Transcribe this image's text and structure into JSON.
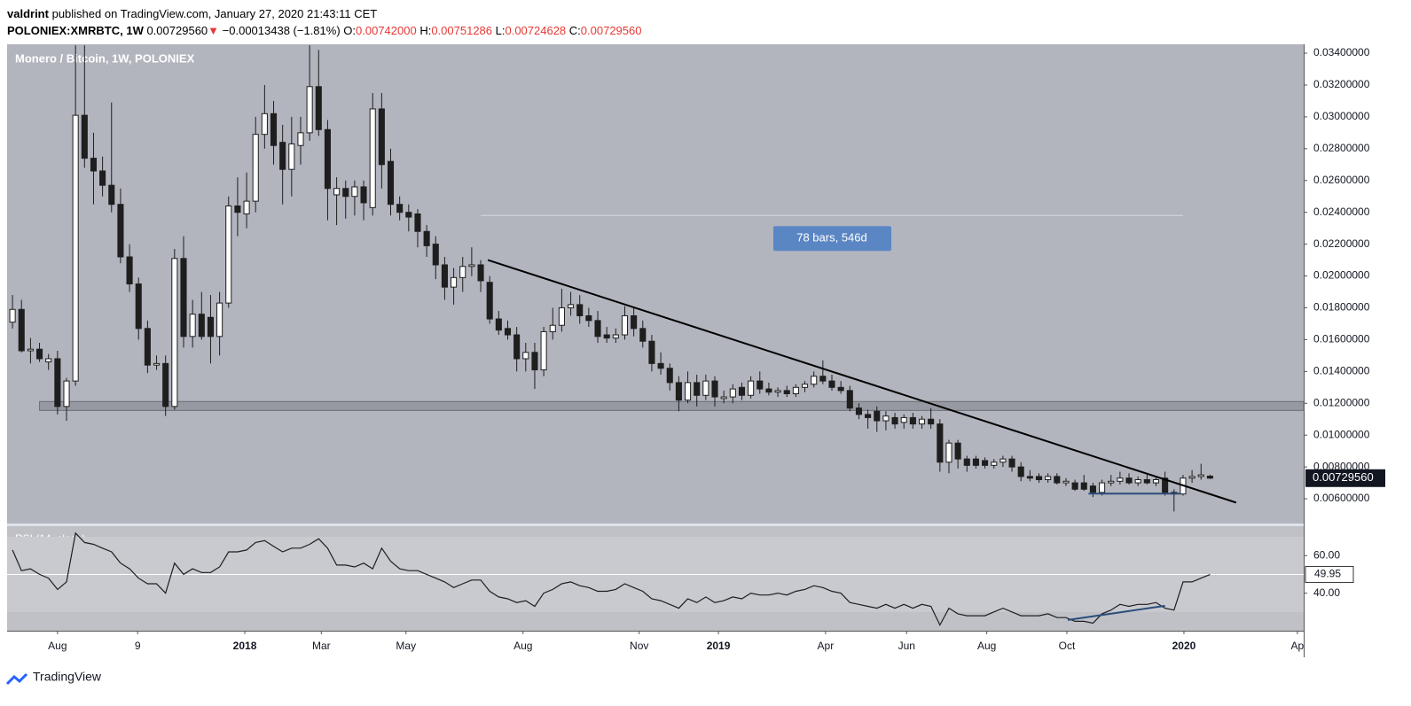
{
  "header": {
    "author": "valdrint",
    "published": "published on TradingView.com, January 27, 2020 21:43:11 CET",
    "symbol": "POLONIEX:XMRBTC, 1W",
    "price": "0.00729560",
    "arrow": "▼",
    "change": "−0.00013438 (−1.81%)",
    "o_key": "O:",
    "o": "0.00742000",
    "h_key": "H:",
    "h": "0.00751286",
    "l_key": "L:",
    "l": "0.00724628",
    "c_key": "C:",
    "c": "0.00729560"
  },
  "footer": {
    "brand": "TradingView"
  },
  "chart_data": {
    "type": "candlestick",
    "title": "Monero / Bitcoin, 1W, POLONIEX",
    "xlim": [
      -0.6,
      143.4
    ],
    "xticks": [
      {
        "value": 5.0,
        "label": "Aug"
      },
      {
        "value": 13.9,
        "label": "9"
      },
      {
        "value": 25.8,
        "label": "2018"
      },
      {
        "value": 34.3,
        "label": "Mar"
      },
      {
        "value": 43.7,
        "label": "May"
      },
      {
        "value": 56.7,
        "label": "Aug"
      },
      {
        "value": 69.6,
        "label": "Nov"
      },
      {
        "value": 78.4,
        "label": "2019"
      },
      {
        "value": 90.3,
        "label": "Apr"
      },
      {
        "value": 99.3,
        "label": "Jun"
      },
      {
        "value": 108.2,
        "label": "Aug"
      },
      {
        "value": 117.1,
        "label": "Oct"
      },
      {
        "value": 130.1,
        "label": "2020"
      },
      {
        "value": 142.7,
        "label": "Ap"
      }
    ],
    "ylim": [
      0.0045,
      0.03456
    ],
    "yticks": [
      {
        "value": 0.006,
        "label": "0.00600000"
      },
      {
        "value": 0.008,
        "label": "0.00800000"
      },
      {
        "value": 0.01,
        "label": "0.01000000"
      },
      {
        "value": 0.012,
        "label": "0.01200000"
      },
      {
        "value": 0.014,
        "label": "0.01400000"
      },
      {
        "value": 0.016,
        "label": "0.01600000"
      },
      {
        "value": 0.018,
        "label": "0.01800000"
      },
      {
        "value": 0.02,
        "label": "0.02000000"
      },
      {
        "value": 0.022,
        "label": "0.02200000"
      },
      {
        "value": 0.024,
        "label": "0.02400000"
      },
      {
        "value": 0.026,
        "label": "0.02600000"
      },
      {
        "value": 0.028,
        "label": "0.02800000"
      },
      {
        "value": 0.03,
        "label": "0.03000000"
      },
      {
        "value": 0.032,
        "label": "0.03200000"
      },
      {
        "value": 0.034,
        "label": "0.03400000"
      }
    ],
    "last_price": {
      "value": 0.0072956,
      "label": "0.00729560"
    },
    "up_color": "#ffffff",
    "down_color": "#1e1e1e",
    "candles": [
      [
        0.0171,
        0.0188,
        0.0167,
        0.0179
      ],
      [
        0.0179,
        0.0185,
        0.0152,
        0.0153
      ],
      [
        0.0153,
        0.0161,
        0.0145,
        0.0154
      ],
      [
        0.0154,
        0.0158,
        0.0146,
        0.0148
      ],
      [
        0.0146,
        0.0151,
        0.0141,
        0.0148
      ],
      [
        0.0148,
        0.0153,
        0.0113,
        0.0118
      ],
      [
        0.0118,
        0.0136,
        0.0109,
        0.0134
      ],
      [
        0.0134,
        0.0345,
        0.0131,
        0.0301
      ],
      [
        0.0301,
        0.0345,
        0.0268,
        0.0274
      ],
      [
        0.0274,
        0.029,
        0.0245,
        0.0266
      ],
      [
        0.0266,
        0.0275,
        0.025,
        0.0257
      ],
      [
        0.0257,
        0.0309,
        0.024,
        0.0245
      ],
      [
        0.0245,
        0.0255,
        0.0208,
        0.0212
      ],
      [
        0.0212,
        0.022,
        0.019,
        0.0195
      ],
      [
        0.0195,
        0.0199,
        0.016,
        0.0167
      ],
      [
        0.0167,
        0.0172,
        0.0139,
        0.0144
      ],
      [
        0.0144,
        0.015,
        0.0141,
        0.0145
      ],
      [
        0.0145,
        0.015,
        0.0112,
        0.0118
      ],
      [
        0.0118,
        0.0217,
        0.0116,
        0.0211
      ],
      [
        0.0211,
        0.0225,
        0.0155,
        0.0162
      ],
      [
        0.0162,
        0.0185,
        0.0155,
        0.0176
      ],
      [
        0.0176,
        0.019,
        0.016,
        0.0162
      ],
      [
        0.0174,
        0.0188,
        0.0145,
        0.0162
      ],
      [
        0.0162,
        0.019,
        0.015,
        0.0183
      ],
      [
        0.0183,
        0.025,
        0.018,
        0.0244
      ],
      [
        0.0244,
        0.0262,
        0.0225,
        0.024
      ],
      [
        0.0239,
        0.0265,
        0.023,
        0.0247
      ],
      [
        0.0247,
        0.03,
        0.024,
        0.0289
      ],
      [
        0.0289,
        0.032,
        0.028,
        0.0302
      ],
      [
        0.0302,
        0.031,
        0.027,
        0.0282
      ],
      [
        0.0284,
        0.0295,
        0.0245,
        0.0267
      ],
      [
        0.0267,
        0.03,
        0.025,
        0.0283
      ],
      [
        0.0282,
        0.03,
        0.027,
        0.029
      ],
      [
        0.029,
        0.0345,
        0.0285,
        0.0319
      ],
      [
        0.0319,
        0.0342,
        0.0288,
        0.0292
      ],
      [
        0.0292,
        0.0298,
        0.0235,
        0.0255
      ],
      [
        0.0251,
        0.0262,
        0.0232,
        0.0255
      ],
      [
        0.0255,
        0.026,
        0.0236,
        0.025
      ],
      [
        0.025,
        0.026,
        0.0238,
        0.0256
      ],
      [
        0.0256,
        0.026,
        0.0235,
        0.0246
      ],
      [
        0.0243,
        0.0315,
        0.0238,
        0.0305
      ],
      [
        0.0305,
        0.0315,
        0.0255,
        0.027
      ],
      [
        0.0272,
        0.028,
        0.0238,
        0.0245
      ],
      [
        0.0245,
        0.025,
        0.0235,
        0.024
      ],
      [
        0.024,
        0.0245,
        0.0228,
        0.0237
      ],
      [
        0.0239,
        0.0242,
        0.0218,
        0.0228
      ],
      [
        0.0228,
        0.0232,
        0.0212,
        0.0219
      ],
      [
        0.022,
        0.0225,
        0.0198,
        0.0207
      ],
      [
        0.0207,
        0.0212,
        0.0185,
        0.0193
      ],
      [
        0.0193,
        0.0205,
        0.0182,
        0.0199
      ],
      [
        0.0199,
        0.0212,
        0.019,
        0.0206
      ],
      [
        0.0206,
        0.0218,
        0.02,
        0.0207
      ],
      [
        0.0207,
        0.021,
        0.019,
        0.0197
      ],
      [
        0.0196,
        0.02,
        0.017,
        0.0173
      ],
      [
        0.0173,
        0.0178,
        0.0163,
        0.0166
      ],
      [
        0.0167,
        0.0172,
        0.016,
        0.0163
      ],
      [
        0.0163,
        0.0168,
        0.014,
        0.0148
      ],
      [
        0.0148,
        0.0158,
        0.014,
        0.0152
      ],
      [
        0.0152,
        0.0158,
        0.0129,
        0.0141
      ],
      [
        0.0141,
        0.0168,
        0.0137,
        0.0165
      ],
      [
        0.0165,
        0.018,
        0.016,
        0.0169
      ],
      [
        0.0169,
        0.0192,
        0.0165,
        0.018
      ],
      [
        0.018,
        0.019,
        0.0175,
        0.0182
      ],
      [
        0.0182,
        0.0188,
        0.017,
        0.0175
      ],
      [
        0.0175,
        0.018,
        0.0168,
        0.0172
      ],
      [
        0.0172,
        0.0178,
        0.0158,
        0.0162
      ],
      [
        0.0163,
        0.0168,
        0.0158,
        0.0161
      ],
      [
        0.0161,
        0.0167,
        0.0158,
        0.0163
      ],
      [
        0.0163,
        0.0181,
        0.016,
        0.0175
      ],
      [
        0.0175,
        0.018,
        0.0162,
        0.0167
      ],
      [
        0.0167,
        0.0172,
        0.0155,
        0.0159
      ],
      [
        0.0159,
        0.0163,
        0.014,
        0.0145
      ],
      [
        0.0145,
        0.0152,
        0.0138,
        0.0142
      ],
      [
        0.0142,
        0.0145,
        0.0128,
        0.0133
      ],
      [
        0.0133,
        0.0137,
        0.0115,
        0.0122
      ],
      [
        0.0122,
        0.014,
        0.012,
        0.0133
      ],
      [
        0.0133,
        0.0138,
        0.0118,
        0.0125
      ],
      [
        0.0125,
        0.0138,
        0.0122,
        0.0134
      ],
      [
        0.0134,
        0.0137,
        0.0118,
        0.0124
      ],
      [
        0.0123,
        0.0128,
        0.012,
        0.0124
      ],
      [
        0.0124,
        0.0132,
        0.012,
        0.0129
      ],
      [
        0.013,
        0.0133,
        0.0122,
        0.0125
      ],
      [
        0.0125,
        0.0137,
        0.0123,
        0.0134
      ],
      [
        0.0134,
        0.014,
        0.0126,
        0.0129
      ],
      [
        0.0129,
        0.0133,
        0.0125,
        0.0127
      ],
      [
        0.0127,
        0.013,
        0.0124,
        0.0128
      ],
      [
        0.0128,
        0.0131,
        0.0124,
        0.0126
      ],
      [
        0.0126,
        0.0132,
        0.0124,
        0.013
      ],
      [
        0.013,
        0.0134,
        0.0127,
        0.0132
      ],
      [
        0.0132,
        0.014,
        0.013,
        0.0137
      ],
      [
        0.0137,
        0.0147,
        0.0132,
        0.0134
      ],
      [
        0.0134,
        0.0138,
        0.0128,
        0.013
      ],
      [
        0.013,
        0.0134,
        0.0126,
        0.0128
      ],
      [
        0.0128,
        0.0131,
        0.0115,
        0.0117
      ],
      [
        0.0117,
        0.012,
        0.011,
        0.0113
      ],
      [
        0.0113,
        0.0116,
        0.0104,
        0.0111
      ],
      [
        0.0115,
        0.0118,
        0.0102,
        0.0109
      ],
      [
        0.0109,
        0.0115,
        0.0103,
        0.0112
      ],
      [
        0.0111,
        0.0114,
        0.0104,
        0.0107
      ],
      [
        0.0108,
        0.0113,
        0.0104,
        0.0111
      ],
      [
        0.0111,
        0.0114,
        0.0104,
        0.0107
      ],
      [
        0.0107,
        0.0112,
        0.0104,
        0.011
      ],
      [
        0.011,
        0.0117,
        0.0104,
        0.0107
      ],
      [
        0.0107,
        0.011,
        0.0077,
        0.0083
      ],
      [
        0.0083,
        0.0097,
        0.0076,
        0.0095
      ],
      [
        0.0095,
        0.0097,
        0.0079,
        0.0085
      ],
      [
        0.0085,
        0.0087,
        0.0077,
        0.0081
      ],
      [
        0.0085,
        0.0087,
        0.0079,
        0.0081
      ],
      [
        0.0084,
        0.0086,
        0.0079,
        0.0081
      ],
      [
        0.0081,
        0.0085,
        0.0079,
        0.0083
      ],
      [
        0.0083,
        0.0087,
        0.008,
        0.0085
      ],
      [
        0.0085,
        0.0087,
        0.0077,
        0.008
      ],
      [
        0.008,
        0.0083,
        0.0071,
        0.0074
      ],
      [
        0.0074,
        0.0078,
        0.0071,
        0.0073
      ],
      [
        0.0074,
        0.0076,
        0.007,
        0.0072
      ],
      [
        0.0072,
        0.0076,
        0.007,
        0.0074
      ],
      [
        0.0074,
        0.0076,
        0.0069,
        0.007
      ],
      [
        0.007,
        0.0073,
        0.0068,
        0.0071
      ],
      [
        0.007,
        0.0072,
        0.0065,
        0.0066
      ],
      [
        0.007,
        0.0075,
        0.0065,
        0.0066
      ],
      [
        0.0068,
        0.007,
        0.0061,
        0.0064
      ],
      [
        0.0064,
        0.0072,
        0.0062,
        0.007
      ],
      [
        0.007,
        0.0075,
        0.0068,
        0.0071
      ],
      [
        0.0071,
        0.0077,
        0.0069,
        0.0073
      ],
      [
        0.0073,
        0.0076,
        0.0069,
        0.007
      ],
      [
        0.007,
        0.0074,
        0.0068,
        0.0072
      ],
      [
        0.0072,
        0.0075,
        0.0069,
        0.007
      ],
      [
        0.007,
        0.0074,
        0.0068,
        0.0072
      ],
      [
        0.0073,
        0.0077,
        0.0062,
        0.0064
      ],
      [
        0.0064,
        0.0066,
        0.0052,
        0.0063
      ],
      [
        0.0063,
        0.0075,
        0.0062,
        0.0073
      ],
      [
        0.0073,
        0.0078,
        0.007,
        0.0074
      ],
      [
        0.0074,
        0.0082,
        0.0072,
        0.0075
      ],
      [
        0.00742,
        0.00751286,
        0.00724628,
        0.0072956
      ]
    ],
    "zone": {
      "y": [
        0.01155,
        0.01211
      ],
      "x": [
        3.0,
        143.4
      ],
      "color": "#8a8d94"
    },
    "trendline": {
      "x": [
        52.8,
        135.9
      ],
      "y": [
        0.021,
        0.00576
      ],
      "color": "#000000"
    },
    "support_line": {
      "x": [
        119.5,
        129.7
      ],
      "y": [
        0.00632,
        0.00632
      ],
      "color": "#2a4d7a"
    },
    "measure": {
      "label": "78 bars, 546d",
      "x": [
        52,
        130
      ],
      "y": 0.0238,
      "color": "#5b86c4"
    },
    "rsi": {
      "title": "RSI (14, close)",
      "ylim": [
        20,
        75.7
      ],
      "yticks": [
        {
          "value": 60,
          "label": "60.00"
        },
        {
          "value": 40,
          "label": "40.00"
        }
      ],
      "band": [
        30,
        70
      ],
      "mid": 50,
      "color": "#1e1e1e",
      "divergence": {
        "x": [
          117.2,
          128
        ],
        "y": [
          25.7,
          33.3
        ],
        "color": "#2a4d7a"
      },
      "values": [
        63,
        52,
        53,
        50,
        48,
        42,
        46,
        72,
        67,
        66,
        64,
        62,
        56,
        53,
        48,
        45,
        45,
        40,
        56,
        50,
        53,
        51,
        51,
        54,
        62,
        62,
        63,
        67,
        68,
        65,
        62,
        64,
        64,
        66,
        69,
        64,
        55,
        55,
        54,
        56,
        53,
        64,
        57,
        53,
        52,
        52,
        50,
        48,
        46,
        43,
        45,
        47,
        47,
        41,
        38,
        37,
        35,
        36,
        33,
        40,
        42,
        45,
        46,
        44,
        43,
        41,
        41,
        42,
        45,
        43,
        41,
        37,
        36,
        34,
        32,
        37,
        35,
        38,
        35,
        36,
        38,
        37,
        40,
        39,
        39,
        40,
        39,
        41,
        42,
        44,
        43,
        41,
        40,
        35,
        34,
        33,
        32,
        34,
        32,
        34,
        32,
        34,
        33,
        23,
        32,
        29,
        28,
        28,
        28,
        30,
        32,
        30,
        28,
        28,
        28,
        29,
        27,
        27,
        25,
        25,
        24,
        29,
        31,
        34,
        33,
        34,
        34,
        35,
        32,
        31,
        46,
        46,
        48,
        49.95
      ]
    }
  }
}
